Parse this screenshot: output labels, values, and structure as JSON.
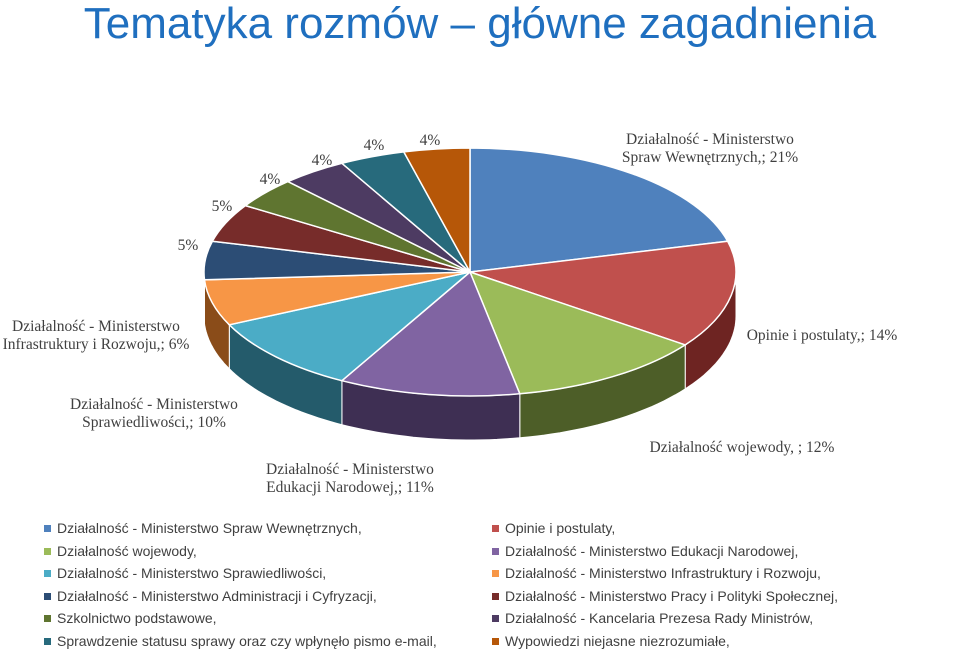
{
  "chart_data": {
    "type": "pie",
    "title": "Tematyka rozmów – główne zagadnienia",
    "slices": [
      {
        "name": "Działalność - Ministerstwo Spraw Wewnętrznych,",
        "value": 21,
        "label_lines": [
          "Działalność - Ministerstwo",
          "Spraw Wewnętrznych,; 21%"
        ],
        "color": "#4f81bd",
        "side": "#2c4b72"
      },
      {
        "name": "Opinie i postulaty,",
        "value": 14,
        "label_lines": [
          "Opinie i postulaty,; 14%"
        ],
        "color": "#c0504d",
        "side": "#6e2422"
      },
      {
        "name": "Działalność wojewody,",
        "value": 12,
        "label_lines": [
          "Działalność wojewody, ; 12%"
        ],
        "color": "#9bbb59",
        "side": "#4d5e28"
      },
      {
        "name": "Działalność - Ministerstwo Edukacji Narodowej,",
        "value": 11,
        "label_lines": [
          "Działalność - Ministerstwo",
          "Edukacji Narodowej,; 11%"
        ],
        "color": "#8064a2",
        "side": "#3e2f53"
      },
      {
        "name": "Działalność - Ministerstwo Sprawiedliwości,",
        "value": 10,
        "label_lines": [
          "Działalność - Ministerstwo",
          "Sprawiedliwości,; 10%"
        ],
        "color": "#4bacc6",
        "side": "#245b6b"
      },
      {
        "name": "Działalność - Ministerstwo Infrastruktury i Rozwoju,",
        "value": 6,
        "label_lines": [
          "Działalność - Ministerstwo",
          "Infrastruktury i Rozwoju,; 6%"
        ],
        "color": "#f79646",
        "side": "#8a4c19"
      },
      {
        "name": "Działalność - Ministerstwo Administracji i Cyfryzacji,",
        "value": 5,
        "label_lines": [
          "5%"
        ],
        "color": "#2c4d75",
        "side": "#16273b"
      },
      {
        "name": "Działalność - Ministerstwo Pracy i Polityki Społecznej,",
        "value": 5,
        "label_lines": [
          "5%"
        ],
        "color": "#772c2a",
        "side": "#3b1514"
      },
      {
        "name": "Szkolnictwo podstawowe,",
        "value": 4,
        "label_lines": [
          "4%"
        ],
        "color": "#5f7530",
        "side": "#303b18"
      },
      {
        "name": "Działalność - Kancelaria Prezesa Rady Ministrów,",
        "value": 4,
        "label_lines": [
          "4%"
        ],
        "color": "#4d3b62",
        "side": "#271e31"
      },
      {
        "name": "Sprawdzenie statusu sprawy oraz czy wpłynęło pismo e-mail,",
        "value": 4,
        "label_lines": [
          "4%"
        ],
        "color": "#276a7c",
        "side": "#13353e"
      },
      {
        "name": "Wypowiedzi niejasne niezrozumiałe,",
        "value": 4,
        "label_lines": [
          "4%"
        ],
        "color": "#b65708",
        "side": "#5b2b04"
      }
    ],
    "legend_order": [
      0,
      1,
      2,
      3,
      4,
      5,
      6,
      7,
      8,
      9,
      10,
      11
    ],
    "legend_placement": "bottom"
  }
}
